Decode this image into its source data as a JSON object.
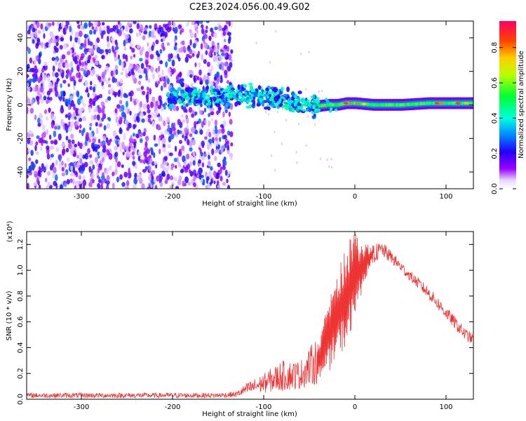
{
  "figure_title": "C2E3.2024.056.00.49.G02",
  "chart_data": [
    {
      "type": "heatmap",
      "xlabel": "Height of straight line (km)",
      "ylabel": "Frequency (Hz)",
      "xlim": [
        -360,
        130
      ],
      "ylim": [
        -50,
        50
      ],
      "x_ticks": [
        -300,
        -200,
        -100,
        0,
        100
      ],
      "x_tick_labels": [
        "-300",
        "-200",
        "-100",
        "0",
        "100"
      ],
      "y_ticks": [
        -40,
        -20,
        0,
        20,
        40
      ],
      "y_tick_labels": [
        "-40",
        "-20",
        "0",
        "20",
        "40"
      ],
      "colorbar": {
        "label": "Normalized spectral amplitude",
        "range": [
          0,
          0.95
        ],
        "ticks": [
          0.0,
          0.2,
          0.4,
          0.6,
          0.8
        ],
        "tick_labels": [
          "0.0",
          "0.2",
          "0.4",
          "0.6",
          "0.8"
        ]
      },
      "regions": [
        {
          "x_range": [
            -360,
            -135
          ],
          "freq_range": [
            -50,
            50
          ],
          "amplitude": [
            0.05,
            0.3
          ],
          "description": "broadband noise"
        },
        {
          "x_range": [
            -135,
            -40
          ],
          "freq_range": [
            -12,
            14
          ],
          "amplitude": [
            0.2,
            0.45
          ],
          "description": "scattered signal band"
        },
        {
          "x_range": [
            -40,
            130
          ],
          "freq_range": [
            -4,
            4
          ],
          "amplitude": [
            0.45,
            0.85
          ],
          "description": "narrow strong signal"
        }
      ],
      "ridge": {
        "x": [
          -200,
          -170,
          -140,
          -120,
          -100,
          -80,
          -60,
          -45,
          -30,
          -20,
          -10,
          0,
          20,
          50,
          80,
          100,
          130
        ],
        "freq": [
          4,
          4,
          5,
          6,
          5,
          3,
          1,
          -1,
          0,
          0,
          1,
          1,
          0,
          0,
          1,
          1,
          1
        ]
      },
      "grid": false
    },
    {
      "type": "line",
      "xlabel": "Height of straight line (km)",
      "ylabel": "SNR (10 * v/v)",
      "y_multiplier": "(x10⁴)",
      "xlim": [
        -360,
        130
      ],
      "ylim": [
        0,
        1.3
      ],
      "x_ticks": [
        -300,
        -200,
        -100,
        0,
        100
      ],
      "x_tick_labels": [
        "-300",
        "-200",
        "-100",
        "0",
        "100"
      ],
      "y_ticks": [
        0.0,
        0.2,
        0.4,
        0.6,
        0.8,
        1.0,
        1.2
      ],
      "y_tick_labels": [
        "0.0",
        "0.2",
        "0.4",
        "0.6",
        "0.8",
        "1.0",
        "1.2"
      ],
      "color": "#ee3333",
      "envelope": {
        "x": [
          -360,
          -300,
          -200,
          -150,
          -130,
          -120,
          -100,
          -80,
          -60,
          -40,
          -30,
          -20,
          -10,
          0,
          10,
          20,
          30,
          40,
          60,
          80,
          100,
          120,
          130
        ],
        "lo": [
          0.01,
          0.01,
          0.01,
          0.01,
          0.015,
          0.03,
          0.05,
          0.06,
          0.08,
          0.12,
          0.2,
          0.3,
          0.4,
          0.6,
          0.9,
          1.05,
          1.1,
          1.05,
          0.92,
          0.78,
          0.62,
          0.46,
          0.42
        ],
        "hi": [
          0.05,
          0.05,
          0.05,
          0.05,
          0.06,
          0.12,
          0.2,
          0.3,
          0.3,
          0.5,
          0.7,
          1.0,
          1.2,
          1.3,
          1.2,
          1.2,
          1.22,
          1.15,
          1.0,
          0.88,
          0.72,
          0.56,
          0.5
        ]
      },
      "grid": false
    }
  ]
}
